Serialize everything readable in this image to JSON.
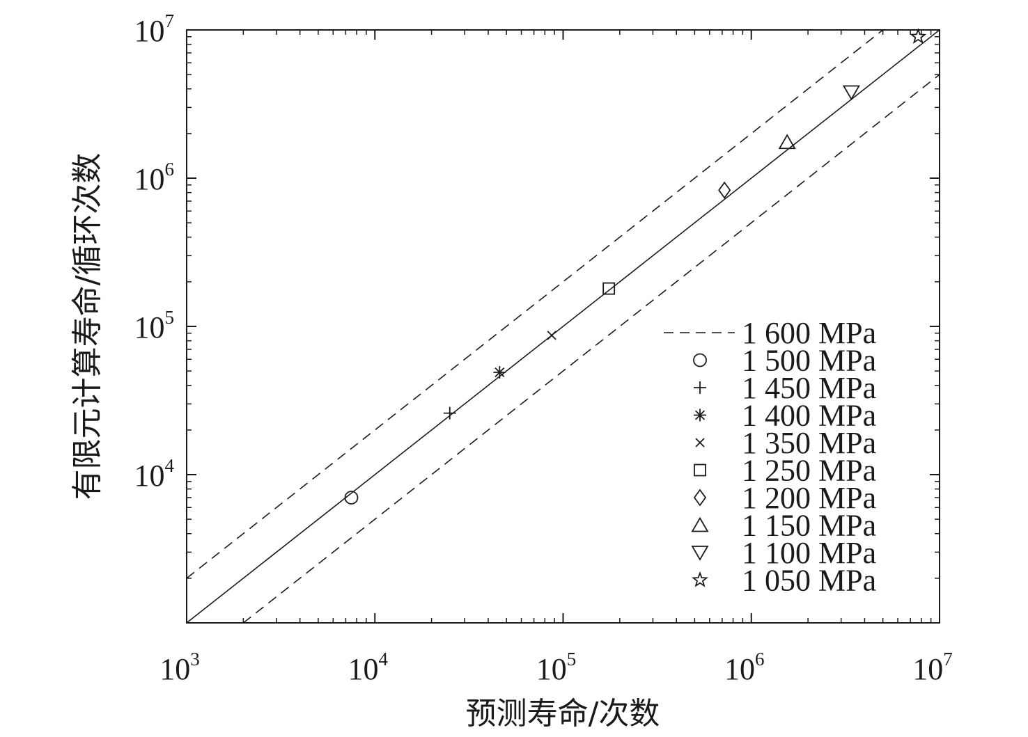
{
  "chart_data": {
    "type": "scatter",
    "title": "",
    "xlabel": "预测寿命/次数",
    "ylabel": "有限元计算寿命/循环次数",
    "x_scale": "log",
    "y_scale": "log",
    "xlim": [
      1000,
      10000000
    ],
    "ylim": [
      1000,
      10000000
    ],
    "x_ticks": [
      {
        "value": 1000,
        "base": "10",
        "exp": "3"
      },
      {
        "value": 10000,
        "base": "10",
        "exp": "4"
      },
      {
        "value": 100000,
        "base": "10",
        "exp": "5"
      },
      {
        "value": 1000000,
        "base": "10",
        "exp": "6"
      },
      {
        "value": 10000000,
        "base": "10",
        "exp": "7"
      }
    ],
    "y_ticks": [
      {
        "value": 10000,
        "base": "10",
        "exp": "4"
      },
      {
        "value": 100000,
        "base": "10",
        "exp": "5"
      },
      {
        "value": 1000000,
        "base": "10",
        "exp": "6"
      },
      {
        "value": 10000000,
        "base": "10",
        "exp": "7"
      }
    ],
    "grid": false,
    "legend_position": "bottom-right",
    "reference_lines": [
      {
        "kind": "solid",
        "factor": 1
      },
      {
        "kind": "dashed",
        "factor": 2,
        "legend": "1 600 MPa"
      },
      {
        "kind": "dashed",
        "factor": 0.5
      }
    ],
    "series": [
      {
        "name": "1 500 MPa",
        "marker": "circle",
        "x": 7500,
        "y": 7000
      },
      {
        "name": "1 450 MPa",
        "marker": "plus",
        "x": 25000,
        "y": 26000
      },
      {
        "name": "1 400 MPa",
        "marker": "asterisk",
        "x": 46000,
        "y": 49000
      },
      {
        "name": "1 350 MPa",
        "marker": "cross",
        "x": 87000,
        "y": 87000
      },
      {
        "name": "1 250 MPa",
        "marker": "square",
        "x": 175000,
        "y": 180000
      },
      {
        "name": "1 200 MPa",
        "marker": "diamond",
        "x": 720000,
        "y": 830000
      },
      {
        "name": "1 150 MPa",
        "marker": "triangle-up",
        "x": 1550000,
        "y": 1750000
      },
      {
        "name": "1 100 MPa",
        "marker": "triangle-down",
        "x": 3400000,
        "y": 3800000
      },
      {
        "name": "1 050 MPa",
        "marker": "star",
        "x": 7700000,
        "y": 9000000
      }
    ]
  }
}
